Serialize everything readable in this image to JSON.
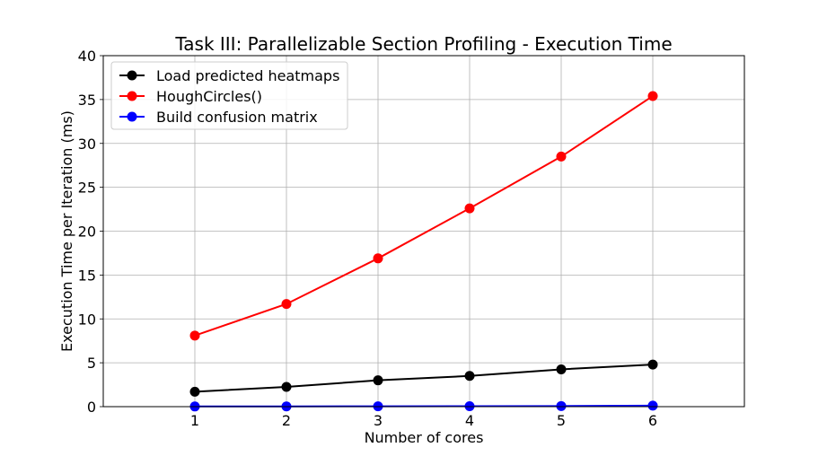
{
  "chart_data": {
    "type": "line",
    "title": "Task III: Parallelizable Section Profiling - Execution Time",
    "xlabel": "Number of cores",
    "ylabel": "Execution Time per Iteration (ms)",
    "x": [
      1,
      2,
      3,
      4,
      5,
      6
    ],
    "xlim": [
      0,
      7
    ],
    "ylim": [
      0,
      40
    ],
    "xticks": [
      1,
      2,
      3,
      4,
      5,
      6
    ],
    "yticks": [
      0,
      5,
      10,
      15,
      20,
      25,
      30,
      35,
      40
    ],
    "grid": true,
    "legend_position": "upper-left",
    "series": [
      {
        "name": "Load predicted heatmaps",
        "color": "#000000",
        "values": [
          1.7,
          2.25,
          3.0,
          3.5,
          4.25,
          4.8
        ]
      },
      {
        "name": "HoughCircles()",
        "color": "#ff0000",
        "values": [
          8.1,
          11.7,
          16.9,
          22.6,
          28.5,
          35.4
        ]
      },
      {
        "name": "Build confusion matrix",
        "color": "#0000ff",
        "values": [
          0.02,
          0.03,
          0.04,
          0.05,
          0.07,
          0.12
        ]
      }
    ]
  }
}
